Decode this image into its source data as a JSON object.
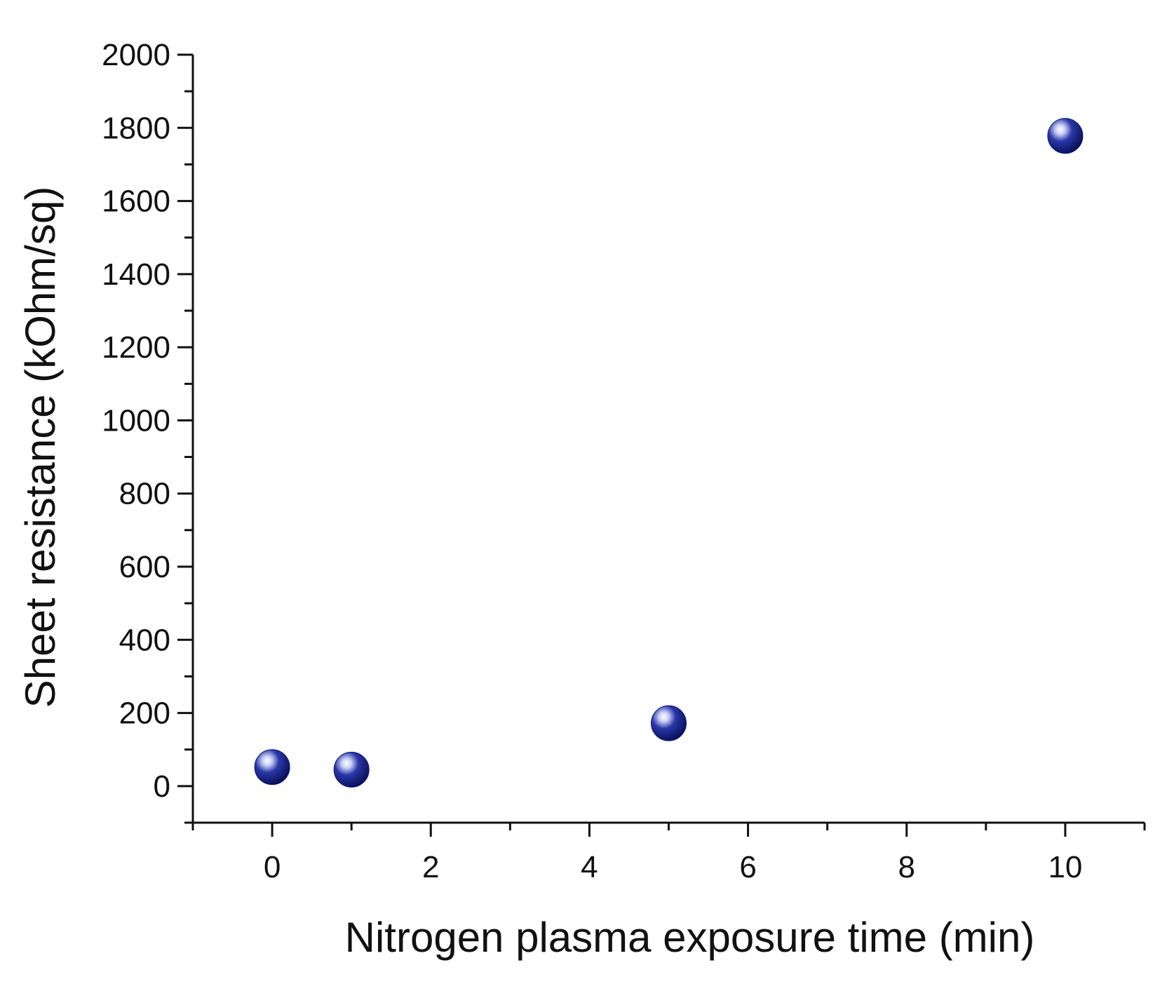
{
  "chart_data": {
    "type": "scatter",
    "title": "",
    "xlabel": "Nitrogen plasma exposure time (min)",
    "ylabel": "Sheet resistance (kOhm/sq)",
    "xlim": [
      -1,
      11
    ],
    "ylim": [
      -100,
      2000
    ],
    "x_ticks": [
      0,
      2,
      4,
      6,
      8,
      10
    ],
    "x_tick_labels": [
      "0",
      "2",
      "4",
      "6",
      "8",
      "10"
    ],
    "y_ticks": [
      0,
      200,
      400,
      600,
      800,
      1000,
      1200,
      1400,
      1600,
      1800,
      2000
    ],
    "y_tick_labels": [
      "0",
      "200",
      "400",
      "600",
      "800",
      "1000",
      "1200",
      "1400",
      "1600",
      "1800",
      "2000"
    ],
    "grid": false,
    "legend": "none",
    "marker_color": "#0d1a80",
    "series": [
      {
        "x": [
          0,
          1,
          5,
          10
        ],
        "y": [
          52,
          45,
          172,
          1778
        ]
      }
    ]
  }
}
